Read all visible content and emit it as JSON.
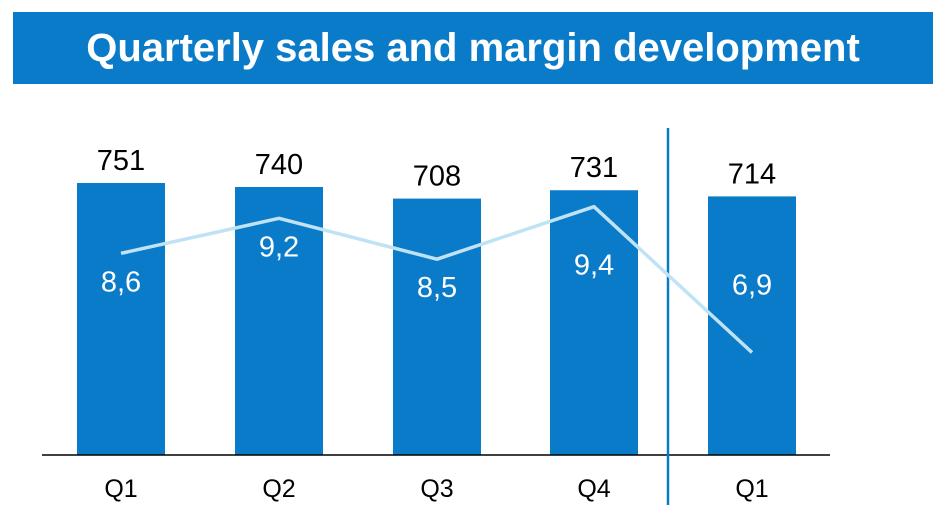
{
  "title": "Quarterly sales and margin development",
  "colors": {
    "title_bg": "#0a7bc8",
    "bar": "#0a7bc8",
    "line": "#bfe3f5",
    "divider": "#0a7bc8",
    "axis": "#000000"
  },
  "chart_data": {
    "type": "bar",
    "title": "Quarterly sales and margin development",
    "categories": [
      "Q1",
      "Q2",
      "Q3",
      "Q4",
      "Q1"
    ],
    "series": [
      {
        "type": "bar",
        "values": [
          751,
          740,
          708,
          731,
          714
        ],
        "value_labels": [
          "751",
          "740",
          "708",
          "731",
          "714"
        ]
      },
      {
        "type": "line",
        "values": [
          8.6,
          9.2,
          8.5,
          9.4,
          6.9
        ],
        "value_labels": [
          "8,6",
          "9,2",
          "8,5",
          "9,4",
          "6,9"
        ]
      }
    ],
    "bar_ylim": [
      0,
      800
    ],
    "line_ylim": [
      5.4,
      10.2
    ],
    "divider_after_index": 3,
    "grid": false,
    "legend": "none"
  }
}
